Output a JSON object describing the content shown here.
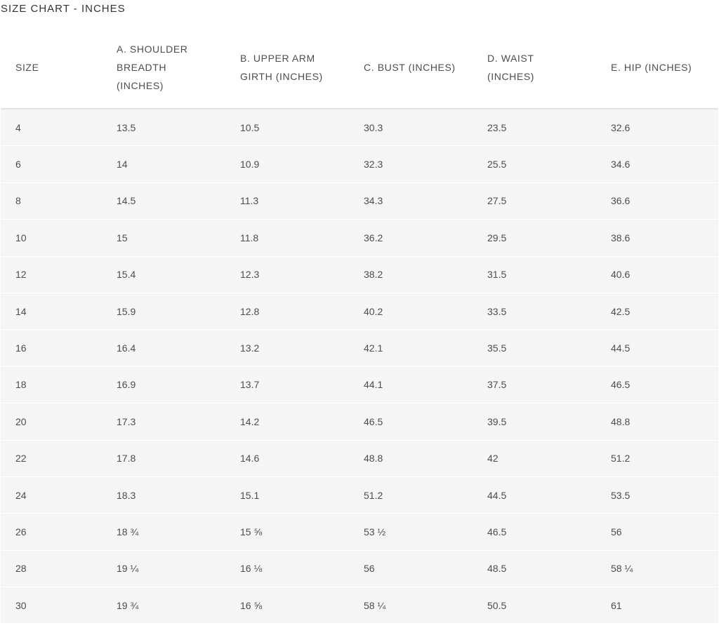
{
  "title": "SIZE CHART - INCHES",
  "columns": [
    "SIZE",
    "A. SHOULDER BREADTH (INCHES)",
    "B. UPPER ARM GIRTH (INCHES)",
    "C. BUST (INCHES)",
    "D. WAIST (INCHES)",
    "E. HIP (INCHES)"
  ],
  "header_lines": [
    [
      "SIZE"
    ],
    [
      "A. SHOULDER",
      "BREADTH",
      "(INCHES)"
    ],
    [
      "B. UPPER ARM",
      "GIRTH (INCHES)"
    ],
    [
      "C. BUST (INCHES)"
    ],
    [
      "D. WAIST",
      "(INCHES)"
    ],
    [
      "E. HIP (INCHES)"
    ]
  ],
  "rows": [
    [
      "4",
      "13.5",
      "10.5",
      "30.3",
      "23.5",
      "32.6"
    ],
    [
      "6",
      "14",
      "10.9",
      "32.3",
      "25.5",
      "34.6"
    ],
    [
      "8",
      "14.5",
      "11.3",
      "34.3",
      "27.5",
      "36.6"
    ],
    [
      "10",
      "15",
      "11.8",
      "36.2",
      "29.5",
      "38.6"
    ],
    [
      "12",
      "15.4",
      "12.3",
      "38.2",
      "31.5",
      "40.6"
    ],
    [
      "14",
      "15.9",
      "12.8",
      "40.2",
      "33.5",
      "42.5"
    ],
    [
      "16",
      "16.4",
      "13.2",
      "42.1",
      "35.5",
      "44.5"
    ],
    [
      "18",
      "16.9",
      "13.7",
      "44.1",
      "37.5",
      "46.5"
    ],
    [
      "20",
      "17.3",
      "14.2",
      "46.5",
      "39.5",
      "48.8"
    ],
    [
      "22",
      "17.8",
      "14.6",
      "48.8",
      "42",
      "51.2"
    ],
    [
      "24",
      "18.3",
      "15.1",
      "51.2",
      "44.5",
      "53.5"
    ],
    [
      "26",
      "18 ¾",
      "15 ⅝",
      "53 ½",
      "46.5",
      "56"
    ],
    [
      "28",
      "19 ¼",
      "16 ⅛",
      "56",
      "48.5",
      "58 ¼"
    ],
    [
      "30",
      "19 ¾",
      "16 ⅝",
      "58 ¼",
      "50.5",
      "61"
    ]
  ],
  "colors": {
    "row_background": "#f5f5f5",
    "header_background": "#ffffff",
    "text": "#4d4d4d"
  }
}
